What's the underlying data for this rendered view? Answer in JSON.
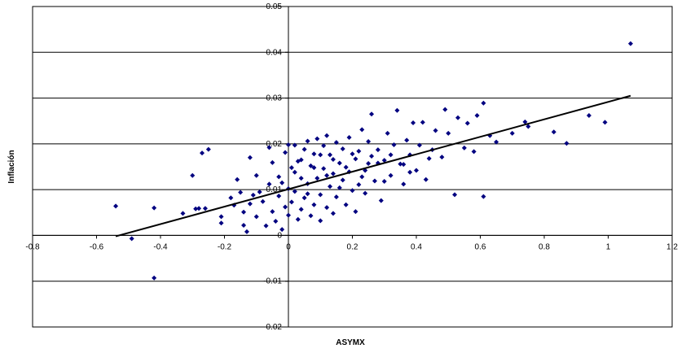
{
  "chart_data": {
    "type": "scatter",
    "title": "",
    "xlabel": "ASYMX",
    "ylabel": "Inflación",
    "xlim": [
      -0.8,
      1.2
    ],
    "ylim": [
      -0.02,
      0.05
    ],
    "x_ticks": [
      "-0.8",
      "-0.6",
      "-0.4",
      "-0.2",
      "0",
      "0.2",
      "0.4",
      "0.6",
      "0.8",
      "1",
      "1.2"
    ],
    "y_ticks": [
      "-0.02",
      "-0.01",
      "0",
      "0.01",
      "0.02",
      "0.03",
      "0.04",
      "0.05"
    ],
    "grid": "horizontal",
    "marker_color": "#000080",
    "trendline": {
      "x": [
        -0.54,
        1.07
      ],
      "y": [
        -0.0002,
        0.0305
      ],
      "color": "#000000"
    },
    "series": [
      {
        "points": [
          [
            -0.54,
            0.0064
          ],
          [
            -0.49,
            -0.0007
          ],
          [
            -0.42,
            0.006
          ],
          [
            -0.42,
            -0.0093
          ],
          [
            -0.33,
            0.0048
          ],
          [
            -0.3,
            0.0131
          ],
          [
            -0.29,
            0.0058
          ],
          [
            -0.28,
            0.0059
          ],
          [
            -0.27,
            0.018
          ],
          [
            -0.26,
            0.0059
          ],
          [
            -0.25,
            0.0188
          ],
          [
            -0.21,
            0.0027
          ],
          [
            -0.21,
            0.0041
          ],
          [
            -0.18,
            0.0082
          ],
          [
            -0.17,
            0.0066
          ],
          [
            -0.16,
            0.0122
          ],
          [
            -0.15,
            0.0094
          ],
          [
            -0.14,
            0.0051
          ],
          [
            -0.14,
            0.0022
          ],
          [
            -0.13,
            0.0008
          ],
          [
            -0.12,
            0.017
          ],
          [
            -0.12,
            0.0069
          ],
          [
            -0.11,
            0.0088
          ],
          [
            -0.1,
            0.0131
          ],
          [
            -0.1,
            0.0041
          ],
          [
            -0.09,
            0.0095
          ],
          [
            -0.08,
            0.0074
          ],
          [
            -0.07,
            0.0021
          ],
          [
            -0.06,
            0.0112
          ],
          [
            -0.06,
            0.0192
          ],
          [
            -0.05,
            0.0159
          ],
          [
            -0.05,
            0.0052
          ],
          [
            -0.04,
            0.0031
          ],
          [
            -0.03,
            0.0128
          ],
          [
            -0.03,
            0.0086
          ],
          [
            -0.02,
            0.0013
          ],
          [
            -0.01,
            0.0181
          ],
          [
            -0.01,
            0.0062
          ],
          [
            0.0,
            0.0198
          ],
          [
            0.0,
            0.0102
          ],
          [
            0.0,
            0.0044
          ],
          [
            0.01,
            0.0148
          ],
          [
            0.01,
            0.0073
          ],
          [
            0.02,
            0.0197
          ],
          [
            0.02,
            0.0096
          ],
          [
            0.03,
            0.0162
          ],
          [
            0.03,
            0.0035
          ],
          [
            0.04,
            0.0125
          ],
          [
            0.04,
            0.0057
          ],
          [
            0.05,
            0.0188
          ],
          [
            0.05,
            0.0082
          ],
          [
            0.06,
            0.0206
          ],
          [
            0.06,
            0.0113
          ],
          [
            0.07,
            0.0043
          ],
          [
            0.07,
            0.0152
          ],
          [
            0.08,
            0.0178
          ],
          [
            0.08,
            0.0067
          ],
          [
            0.09,
            0.0211
          ],
          [
            0.09,
            0.0125
          ],
          [
            0.1,
            0.0089
          ],
          [
            0.1,
            0.0032
          ],
          [
            0.11,
            0.0196
          ],
          [
            0.11,
            0.0146
          ],
          [
            0.12,
            0.0061
          ],
          [
            0.12,
            0.0218
          ],
          [
            0.13,
            0.0107
          ],
          [
            0.13,
            0.0176
          ],
          [
            0.14,
            0.0048
          ],
          [
            0.14,
            0.0135
          ],
          [
            0.15,
            0.0203
          ],
          [
            0.15,
            0.0084
          ],
          [
            0.16,
            0.0158
          ],
          [
            0.17,
            0.0121
          ],
          [
            0.17,
            0.0189
          ],
          [
            0.18,
            0.0067
          ],
          [
            0.19,
            0.0139
          ],
          [
            0.19,
            0.0214
          ],
          [
            0.2,
            0.0098
          ],
          [
            0.21,
            0.0167
          ],
          [
            0.21,
            0.0052
          ],
          [
            0.22,
            0.0184
          ],
          [
            0.23,
            0.0128
          ],
          [
            0.23,
            0.0231
          ],
          [
            0.24,
            0.0092
          ],
          [
            0.25,
            0.0157
          ],
          [
            0.25,
            0.0205
          ],
          [
            0.26,
            0.0265
          ],
          [
            0.27,
            0.0119
          ],
          [
            0.28,
            0.0187
          ],
          [
            0.29,
            0.0076
          ],
          [
            0.3,
            0.0164
          ],
          [
            0.31,
            0.0223
          ],
          [
            0.32,
            0.0131
          ],
          [
            0.33,
            0.0198
          ],
          [
            0.34,
            0.0273
          ],
          [
            0.35,
            0.0156
          ],
          [
            0.36,
            0.0112
          ],
          [
            0.37,
            0.0208
          ],
          [
            0.38,
            0.0176
          ],
          [
            0.39,
            0.0246
          ],
          [
            0.4,
            0.0142
          ],
          [
            0.41,
            0.0197
          ],
          [
            0.42,
            0.0247
          ],
          [
            0.43,
            0.0122
          ],
          [
            0.45,
            0.0187
          ],
          [
            0.46,
            0.0229
          ],
          [
            0.48,
            0.0171
          ],
          [
            0.49,
            0.0275
          ],
          [
            0.5,
            0.0223
          ],
          [
            0.52,
            0.0089
          ],
          [
            0.53,
            0.0257
          ],
          [
            0.55,
            0.0191
          ],
          [
            0.56,
            0.0245
          ],
          [
            0.58,
            0.0183
          ],
          [
            0.59,
            0.0262
          ],
          [
            0.61,
            0.0289
          ],
          [
            0.61,
            0.0085
          ],
          [
            0.63,
            0.0218
          ],
          [
            0.65,
            0.0204
          ],
          [
            0.7,
            0.0223
          ],
          [
            0.74,
            0.0248
          ],
          [
            0.75,
            0.0238
          ],
          [
            0.83,
            0.0226
          ],
          [
            0.87,
            0.0201
          ],
          [
            0.94,
            0.0262
          ],
          [
            0.99,
            0.0247
          ],
          [
            1.07,
            0.0419
          ],
          [
            -0.02,
            0.0115
          ],
          [
            0.02,
            0.0138
          ],
          [
            0.04,
            0.0165
          ],
          [
            0.06,
            0.0091
          ],
          [
            0.08,
            0.0148
          ],
          [
            0.1,
            0.0176
          ],
          [
            0.12,
            0.0131
          ],
          [
            0.14,
            0.0166
          ],
          [
            0.16,
            0.0104
          ],
          [
            0.18,
            0.0149
          ],
          [
            0.2,
            0.0178
          ],
          [
            0.22,
            0.0111
          ],
          [
            0.24,
            0.0142
          ],
          [
            0.26,
            0.0173
          ],
          [
            0.28,
            0.0158
          ],
          [
            0.3,
            0.0118
          ],
          [
            0.32,
            0.0176
          ],
          [
            0.36,
            0.0155
          ],
          [
            0.38,
            0.0138
          ],
          [
            0.44,
            0.0168
          ]
        ]
      }
    ]
  }
}
